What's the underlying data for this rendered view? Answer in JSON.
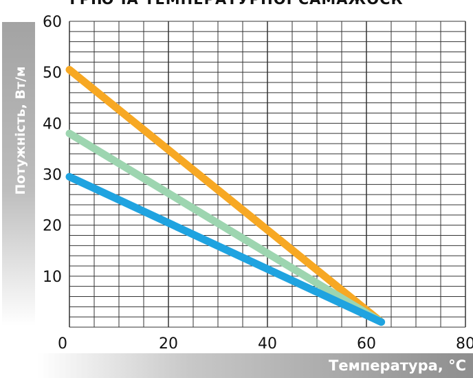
{
  "chart_data": {
    "type": "line",
    "title": "ГРІЮЧА ТЕМПЕРАТУРНОЇ САМАЖОСК",
    "xlabel": "Температура, °C",
    "ylabel": "Потужність, Вт/м",
    "xlim": [
      0,
      80
    ],
    "ylim": [
      0,
      60
    ],
    "x_ticks": [
      "0",
      "20",
      "40",
      "60",
      "80"
    ],
    "y_ticks": [
      "10",
      "20",
      "30",
      "40",
      "50",
      "60"
    ],
    "grid": true,
    "legend": "none",
    "series": [
      {
        "color": "#f7a823",
        "x": [
          0,
          63
        ],
        "y": [
          50.5,
          1
        ]
      },
      {
        "color": "#9dd5b0",
        "x": [
          0,
          63
        ],
        "y": [
          38,
          1
        ]
      },
      {
        "color": "#1fa3e0",
        "x": [
          0,
          63
        ],
        "y": [
          29.5,
          1
        ]
      }
    ]
  }
}
